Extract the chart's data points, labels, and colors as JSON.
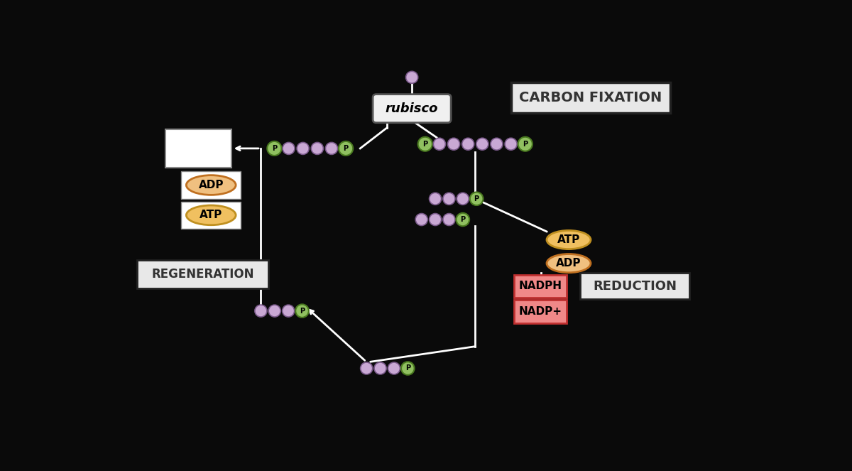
{
  "bg_color": "#0a0a0a",
  "circle_color": "#c9a8d4",
  "circle_edge": "#7a5a8a",
  "p_circle_color": "#90c060",
  "p_circle_edge": "#4a7a20",
  "rubisco_fill": "#f0f0f0",
  "rubisco_edge": "#555555",
  "white_box_fill": "#ffffff",
  "white_box_edge": "#aaaaaa",
  "adp_fill": "#f0c080",
  "adp_edge": "#c07020",
  "atp_fill": "#f0c060",
  "atp_edge": "#c09020",
  "nadph_fill": "#f08888",
  "nadph_edge": "#c03030",
  "carbon_fix_fill": "#e8e8e8",
  "carbon_fix_edge": "#222222",
  "reduction_fill": "#e8e8e8",
  "reduction_edge": "#222222",
  "regen_fill": "#e8e8e8",
  "regen_edge": "#222222",
  "line_color": "#ffffff",
  "carbon_fixation_label": "CARBON FIXATION",
  "regeneration_label": "REGENERATION",
  "reduction_label": "REDUCTION",
  "rubisco_label": "rubisco",
  "adp_label": "ADP",
  "atp_label": "ATP",
  "atp2_label": "ATP",
  "adp2_label": "ADP",
  "nadph_label": "NADPH",
  "nadp_label": "NADP+"
}
